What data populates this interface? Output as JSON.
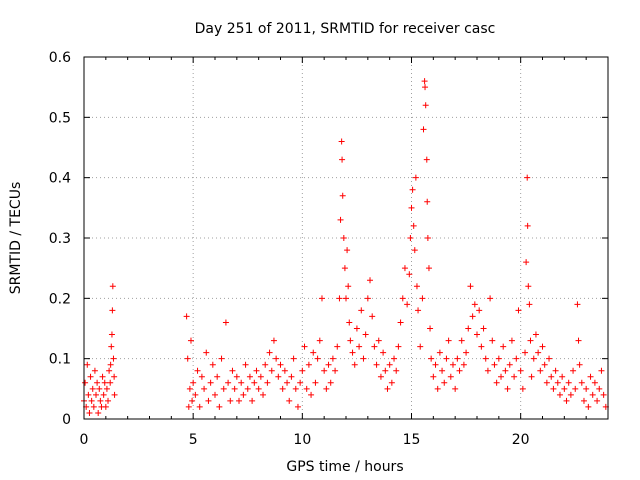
{
  "chart_data": {
    "type": "scatter",
    "title": "Day 251 of 2011, SRMTID for receiver casc",
    "xlabel": "GPS time / hours",
    "ylabel": "SRMTID / TECUs",
    "xlim": [
      0,
      24
    ],
    "ylim": [
      0,
      0.6
    ],
    "xticks": [
      0,
      5,
      10,
      15,
      20
    ],
    "xtick_labels": [
      "0",
      "5",
      "10",
      "15",
      "20"
    ],
    "yticks": [
      0,
      0.1,
      0.2,
      0.3,
      0.4,
      0.5,
      0.6
    ],
    "ytick_labels": [
      "0",
      "0.1",
      "0.2",
      "0.3",
      "0.4",
      "0.5",
      "0.6"
    ],
    "grid": true,
    "marker": "+",
    "color": "#ff0000",
    "series": [
      {
        "name": "SRMTID",
        "points": [
          [
            0.0,
            0.03
          ],
          [
            0.05,
            0.06
          ],
          [
            0.1,
            0.02
          ],
          [
            0.15,
            0.09
          ],
          [
            0.2,
            0.04
          ],
          [
            0.25,
            0.01
          ],
          [
            0.3,
            0.07
          ],
          [
            0.35,
            0.03
          ],
          [
            0.4,
            0.05
          ],
          [
            0.45,
            0.02
          ],
          [
            0.5,
            0.08
          ],
          [
            0.55,
            0.04
          ],
          [
            0.6,
            0.06
          ],
          [
            0.65,
            0.01
          ],
          [
            0.7,
            0.05
          ],
          [
            0.75,
            0.03
          ],
          [
            0.8,
            0.02
          ],
          [
            0.85,
            0.07
          ],
          [
            0.9,
            0.04
          ],
          [
            0.95,
            0.06
          ],
          [
            1.0,
            0.02
          ],
          [
            1.05,
            0.05
          ],
          [
            1.1,
            0.03
          ],
          [
            1.15,
            0.08
          ],
          [
            1.2,
            0.06
          ],
          [
            1.22,
            0.09
          ],
          [
            1.25,
            0.12
          ],
          [
            1.28,
            0.14
          ],
          [
            1.3,
            0.18
          ],
          [
            1.32,
            0.22
          ],
          [
            1.35,
            0.1
          ],
          [
            1.38,
            0.07
          ],
          [
            1.4,
            0.04
          ],
          [
            4.7,
            0.17
          ],
          [
            4.75,
            0.1
          ],
          [
            4.8,
            0.02
          ],
          [
            4.85,
            0.05
          ],
          [
            4.9,
            0.13
          ],
          [
            4.95,
            0.03
          ],
          [
            5.0,
            0.06
          ],
          [
            5.1,
            0.04
          ],
          [
            5.2,
            0.08
          ],
          [
            5.3,
            0.02
          ],
          [
            5.4,
            0.07
          ],
          [
            5.5,
            0.05
          ],
          [
            5.6,
            0.11
          ],
          [
            5.7,
            0.03
          ],
          [
            5.8,
            0.06
          ],
          [
            5.9,
            0.09
          ],
          [
            6.0,
            0.04
          ],
          [
            6.1,
            0.07
          ],
          [
            6.2,
            0.02
          ],
          [
            6.3,
            0.1
          ],
          [
            6.4,
            0.05
          ],
          [
            6.5,
            0.16
          ],
          [
            6.6,
            0.06
          ],
          [
            6.7,
            0.03
          ],
          [
            6.8,
            0.08
          ],
          [
            6.9,
            0.05
          ],
          [
            7.0,
            0.07
          ],
          [
            7.1,
            0.03
          ],
          [
            7.2,
            0.06
          ],
          [
            7.3,
            0.04
          ],
          [
            7.4,
            0.09
          ],
          [
            7.5,
            0.05
          ],
          [
            7.6,
            0.07
          ],
          [
            7.7,
            0.03
          ],
          [
            7.8,
            0.06
          ],
          [
            7.9,
            0.08
          ],
          [
            8.0,
            0.05
          ],
          [
            8.1,
            0.07
          ],
          [
            8.2,
            0.04
          ],
          [
            8.3,
            0.09
          ],
          [
            8.4,
            0.06
          ],
          [
            8.5,
            0.11
          ],
          [
            8.6,
            0.08
          ],
          [
            8.7,
            0.13
          ],
          [
            8.8,
            0.1
          ],
          [
            8.9,
            0.07
          ],
          [
            9.0,
            0.09
          ],
          [
            9.1,
            0.05
          ],
          [
            9.2,
            0.08
          ],
          [
            9.3,
            0.06
          ],
          [
            9.4,
            0.03
          ],
          [
            9.5,
            0.07
          ],
          [
            9.6,
            0.1
          ],
          [
            9.7,
            0.05
          ],
          [
            9.8,
            0.02
          ],
          [
            9.9,
            0.06
          ],
          [
            10.0,
            0.08
          ],
          [
            10.1,
            0.12
          ],
          [
            10.2,
            0.05
          ],
          [
            10.3,
            0.09
          ],
          [
            10.4,
            0.04
          ],
          [
            10.5,
            0.11
          ],
          [
            10.6,
            0.06
          ],
          [
            10.7,
            0.1
          ],
          [
            10.8,
            0.13
          ],
          [
            10.9,
            0.2
          ],
          [
            11.0,
            0.08
          ],
          [
            11.1,
            0.05
          ],
          [
            11.2,
            0.09
          ],
          [
            11.3,
            0.06
          ],
          [
            11.4,
            0.1
          ],
          [
            11.5,
            0.08
          ],
          [
            11.6,
            0.12
          ],
          [
            11.7,
            0.2
          ],
          [
            11.75,
            0.33
          ],
          [
            11.8,
            0.46
          ],
          [
            11.82,
            0.43
          ],
          [
            11.85,
            0.37
          ],
          [
            11.9,
            0.3
          ],
          [
            11.95,
            0.25
          ],
          [
            12.0,
            0.2
          ],
          [
            12.05,
            0.28
          ],
          [
            12.1,
            0.22
          ],
          [
            12.15,
            0.16
          ],
          [
            12.2,
            0.13
          ],
          [
            12.3,
            0.11
          ],
          [
            12.4,
            0.09
          ],
          [
            12.5,
            0.15
          ],
          [
            12.6,
            0.12
          ],
          [
            12.7,
            0.18
          ],
          [
            12.8,
            0.1
          ],
          [
            12.9,
            0.14
          ],
          [
            13.0,
            0.2
          ],
          [
            13.1,
            0.23
          ],
          [
            13.2,
            0.17
          ],
          [
            13.3,
            0.12
          ],
          [
            13.4,
            0.09
          ],
          [
            13.5,
            0.13
          ],
          [
            13.6,
            0.07
          ],
          [
            13.7,
            0.11
          ],
          [
            13.8,
            0.08
          ],
          [
            13.9,
            0.05
          ],
          [
            14.0,
            0.09
          ],
          [
            14.1,
            0.06
          ],
          [
            14.2,
            0.1
          ],
          [
            14.3,
            0.08
          ],
          [
            14.4,
            0.12
          ],
          [
            14.5,
            0.16
          ],
          [
            14.6,
            0.2
          ],
          [
            14.7,
            0.25
          ],
          [
            14.8,
            0.19
          ],
          [
            14.9,
            0.24
          ],
          [
            14.95,
            0.3
          ],
          [
            15.0,
            0.35
          ],
          [
            15.05,
            0.38
          ],
          [
            15.1,
            0.32
          ],
          [
            15.15,
            0.28
          ],
          [
            15.2,
            0.4
          ],
          [
            15.25,
            0.22
          ],
          [
            15.3,
            0.18
          ],
          [
            15.4,
            0.12
          ],
          [
            15.5,
            0.2
          ],
          [
            15.55,
            0.48
          ],
          [
            15.6,
            0.56
          ],
          [
            15.62,
            0.55
          ],
          [
            15.65,
            0.52
          ],
          [
            15.7,
            0.43
          ],
          [
            15.72,
            0.36
          ],
          [
            15.75,
            0.3
          ],
          [
            15.8,
            0.25
          ],
          [
            15.85,
            0.15
          ],
          [
            15.9,
            0.1
          ],
          [
            16.0,
            0.07
          ],
          [
            16.1,
            0.09
          ],
          [
            16.2,
            0.05
          ],
          [
            16.3,
            0.11
          ],
          [
            16.4,
            0.08
          ],
          [
            16.5,
            0.06
          ],
          [
            16.6,
            0.1
          ],
          [
            16.7,
            0.13
          ],
          [
            16.8,
            0.07
          ],
          [
            16.9,
            0.09
          ],
          [
            17.0,
            0.05
          ],
          [
            17.1,
            0.1
          ],
          [
            17.2,
            0.08
          ],
          [
            17.3,
            0.13
          ],
          [
            17.4,
            0.09
          ],
          [
            17.5,
            0.11
          ],
          [
            17.6,
            0.15
          ],
          [
            17.7,
            0.22
          ],
          [
            17.8,
            0.17
          ],
          [
            17.9,
            0.19
          ],
          [
            18.0,
            0.14
          ],
          [
            18.1,
            0.18
          ],
          [
            18.2,
            0.12
          ],
          [
            18.3,
            0.15
          ],
          [
            18.4,
            0.1
          ],
          [
            18.5,
            0.08
          ],
          [
            18.6,
            0.2
          ],
          [
            18.7,
            0.13
          ],
          [
            18.8,
            0.09
          ],
          [
            18.9,
            0.06
          ],
          [
            19.0,
            0.1
          ],
          [
            19.1,
            0.07
          ],
          [
            19.2,
            0.12
          ],
          [
            19.3,
            0.08
          ],
          [
            19.4,
            0.05
          ],
          [
            19.5,
            0.09
          ],
          [
            19.6,
            0.13
          ],
          [
            19.7,
            0.07
          ],
          [
            19.8,
            0.1
          ],
          [
            19.9,
            0.18
          ],
          [
            20.0,
            0.08
          ],
          [
            20.1,
            0.05
          ],
          [
            20.2,
            0.11
          ],
          [
            20.25,
            0.26
          ],
          [
            20.3,
            0.4
          ],
          [
            20.32,
            0.32
          ],
          [
            20.35,
            0.22
          ],
          [
            20.4,
            0.19
          ],
          [
            20.45,
            0.13
          ],
          [
            20.5,
            0.07
          ],
          [
            20.6,
            0.1
          ],
          [
            20.7,
            0.14
          ],
          [
            20.8,
            0.11
          ],
          [
            20.9,
            0.08
          ],
          [
            21.0,
            0.12
          ],
          [
            21.1,
            0.09
          ],
          [
            21.2,
            0.06
          ],
          [
            21.3,
            0.1
          ],
          [
            21.4,
            0.07
          ],
          [
            21.5,
            0.05
          ],
          [
            21.6,
            0.08
          ],
          [
            21.7,
            0.06
          ],
          [
            21.8,
            0.04
          ],
          [
            21.9,
            0.07
          ],
          [
            22.0,
            0.05
          ],
          [
            22.1,
            0.03
          ],
          [
            22.2,
            0.06
          ],
          [
            22.3,
            0.04
          ],
          [
            22.4,
            0.08
          ],
          [
            22.5,
            0.05
          ],
          [
            22.6,
            0.19
          ],
          [
            22.65,
            0.13
          ],
          [
            22.7,
            0.09
          ],
          [
            22.8,
            0.06
          ],
          [
            22.9,
            0.03
          ],
          [
            23.0,
            0.05
          ],
          [
            23.1,
            0.02
          ],
          [
            23.2,
            0.07
          ],
          [
            23.3,
            0.04
          ],
          [
            23.4,
            0.06
          ],
          [
            23.5,
            0.03
          ],
          [
            23.6,
            0.05
          ],
          [
            23.7,
            0.08
          ],
          [
            23.8,
            0.04
          ],
          [
            23.9,
            0.02
          ]
        ]
      }
    ]
  }
}
